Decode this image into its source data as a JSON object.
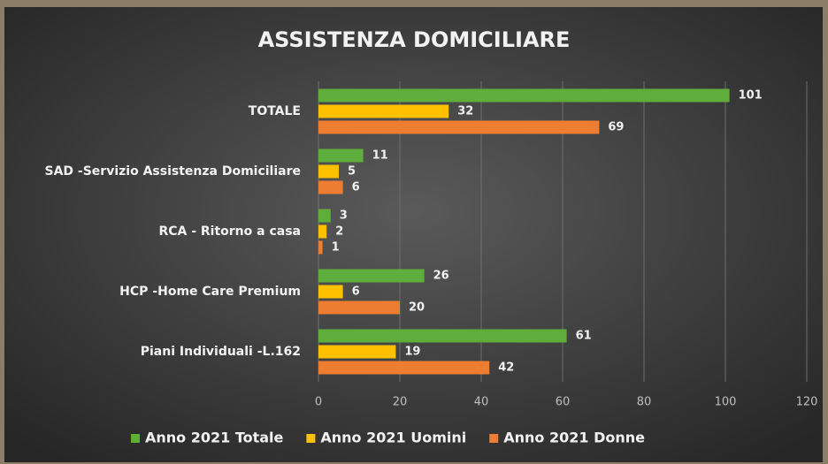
{
  "chart_data": {
    "type": "bar",
    "orientation": "horizontal",
    "title": "ASSISTENZA DOMICILIARE",
    "categories": [
      "TOTALE",
      "SAD -Servizio Assistenza Domiciliare",
      "RCA - Ritorno a casa",
      "HCP -Home Care Premium",
      "Piani Individuali -L.162"
    ],
    "series": [
      {
        "name": "Anno 2021 Totale",
        "color": "#5fad3b",
        "values": [
          101,
          11,
          3,
          26,
          61
        ]
      },
      {
        "name": "Anno 2021 Uomini",
        "color": "#ffc000",
        "values": [
          32,
          5,
          2,
          6,
          19
        ]
      },
      {
        "name": "Anno 2021 Donne",
        "color": "#ed7d31",
        "values": [
          69,
          6,
          1,
          20,
          42
        ]
      }
    ],
    "xlim": [
      0,
      120
    ],
    "xticks": [
      0,
      20,
      40,
      60,
      80,
      100,
      120
    ],
    "grid": true,
    "legend": "bottom"
  }
}
